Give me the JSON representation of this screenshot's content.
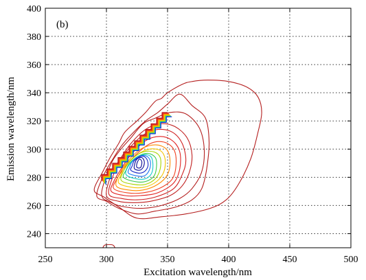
{
  "chart_data": {
    "type": "contour",
    "panel_label": "(b)",
    "xlabel": "Excitation wavelength/nm",
    "ylabel": "Emission wavelength/nm",
    "xlim": [
      250,
      500
    ],
    "ylim": [
      230,
      400
    ],
    "x_ticks": [
      250,
      300,
      350,
      400,
      450,
      500
    ],
    "y_ticks": [
      240,
      260,
      280,
      300,
      320,
      340,
      360,
      380,
      400
    ],
    "x_tick_labels": [
      "250",
      "300",
      "350",
      "400",
      "450",
      "500"
    ],
    "y_tick_labels": [
      "240",
      "260",
      "280",
      "300",
      "320",
      "340",
      "360",
      "380",
      "400"
    ],
    "grid": true,
    "peak": {
      "excitation": 328,
      "emission": 290
    },
    "contours": [
      {
        "color": "#b41e1e",
        "points": [
          [
            290,
            271
          ],
          [
            298,
            266
          ],
          [
            310,
            259
          ],
          [
            325,
            251
          ],
          [
            345,
            252
          ],
          [
            365,
            254
          ],
          [
            385,
            258
          ],
          [
            398,
            264
          ],
          [
            408,
            275
          ],
          [
            418,
            293
          ],
          [
            424,
            312
          ],
          [
            427,
            326
          ],
          [
            424,
            337
          ],
          [
            415,
            344
          ],
          [
            400,
            348
          ],
          [
            383,
            349
          ],
          [
            370,
            348
          ],
          [
            362,
            346
          ],
          [
            350,
            340
          ],
          [
            345,
            336
          ],
          [
            340,
            334
          ],
          [
            332,
            326
          ],
          [
            325,
            320
          ],
          [
            315,
            312
          ],
          [
            310,
            304
          ],
          [
            303,
            294
          ],
          [
            297,
            284
          ]
        ]
      },
      {
        "color": "#b41e1e",
        "points": [
          [
            292,
            267
          ],
          [
            300,
            263
          ],
          [
            310,
            258
          ],
          [
            325,
            254
          ],
          [
            340,
            256
          ],
          [
            357,
            259
          ],
          [
            370,
            264
          ],
          [
            378,
            272
          ],
          [
            382,
            286
          ],
          [
            384,
            305
          ],
          [
            381,
            322
          ],
          [
            370,
            331
          ],
          [
            360,
            339
          ],
          [
            350,
            332
          ],
          [
            342,
            326
          ],
          [
            332,
            320
          ],
          [
            320,
            310
          ],
          [
            312,
            302
          ],
          [
            306,
            294
          ],
          [
            298,
            282
          ]
        ]
      },
      {
        "color": "#b41e1e",
        "points": [
          [
            296,
            268
          ],
          [
            304,
            262
          ],
          [
            315,
            259
          ],
          [
            330,
            258
          ],
          [
            345,
            260
          ],
          [
            360,
            265
          ],
          [
            370,
            272
          ],
          [
            378,
            284
          ],
          [
            380,
            300
          ],
          [
            376,
            315
          ],
          [
            365,
            325
          ],
          [
            352,
            326
          ],
          [
            340,
            322
          ],
          [
            330,
            318
          ],
          [
            320,
            308
          ],
          [
            310,
            298
          ],
          [
            303,
            288
          ]
        ]
      },
      {
        "color": "#c01e1e",
        "points": [
          [
            300,
            267
          ],
          [
            310,
            263
          ],
          [
            322,
            262
          ],
          [
            336,
            263
          ],
          [
            352,
            267
          ],
          [
            362,
            274
          ],
          [
            368,
            284
          ],
          [
            370,
            296
          ],
          [
            366,
            308
          ],
          [
            356,
            316
          ],
          [
            344,
            318
          ],
          [
            332,
            314
          ],
          [
            320,
            304
          ],
          [
            312,
            294
          ],
          [
            304,
            282
          ]
        ]
      },
      {
        "color": "#d02020",
        "points": [
          [
            302,
            268
          ],
          [
            312,
            265
          ],
          [
            325,
            264
          ],
          [
            340,
            266
          ],
          [
            355,
            272
          ],
          [
            362,
            282
          ],
          [
            365,
            292
          ],
          [
            362,
            304
          ],
          [
            354,
            312
          ],
          [
            342,
            314
          ],
          [
            330,
            310
          ],
          [
            318,
            300
          ],
          [
            310,
            290
          ],
          [
            305,
            280
          ]
        ]
      },
      {
        "color": "#e02020",
        "points": [
          [
            304,
            270
          ],
          [
            315,
            267
          ],
          [
            328,
            267
          ],
          [
            342,
            269
          ],
          [
            355,
            276
          ],
          [
            360,
            286
          ],
          [
            360,
            298
          ],
          [
            354,
            306
          ],
          [
            344,
            309
          ],
          [
            332,
            306
          ],
          [
            320,
            296
          ],
          [
            312,
            286
          ],
          [
            306,
            277
          ]
        ]
      },
      {
        "color": "#f04020",
        "points": [
          [
            306,
            272
          ],
          [
            317,
            269
          ],
          [
            330,
            269
          ],
          [
            343,
            272
          ],
          [
            354,
            279
          ],
          [
            357,
            290
          ],
          [
            355,
            300
          ],
          [
            347,
            305
          ],
          [
            336,
            304
          ],
          [
            324,
            296
          ],
          [
            314,
            286
          ],
          [
            308,
            278
          ]
        ]
      },
      {
        "color": "#ff8a00",
        "points": [
          [
            308,
            274
          ],
          [
            318,
            271
          ],
          [
            330,
            271
          ],
          [
            342,
            275
          ],
          [
            350,
            282
          ],
          [
            352,
            292
          ],
          [
            349,
            300
          ],
          [
            340,
            303
          ],
          [
            328,
            300
          ],
          [
            318,
            292
          ],
          [
            311,
            283
          ]
        ]
      },
      {
        "color": "#f4c400",
        "points": [
          [
            310,
            276
          ],
          [
            320,
            273
          ],
          [
            331,
            273
          ],
          [
            341,
            277
          ],
          [
            347,
            284
          ],
          [
            348,
            293
          ],
          [
            344,
            299
          ],
          [
            335,
            300
          ],
          [
            325,
            296
          ],
          [
            316,
            289
          ],
          [
            312,
            282
          ]
        ]
      },
      {
        "color": "#a8d400",
        "points": [
          [
            312,
            278
          ],
          [
            322,
            275
          ],
          [
            332,
            275
          ],
          [
            340,
            279
          ],
          [
            344,
            286
          ],
          [
            344,
            294
          ],
          [
            339,
            298
          ],
          [
            330,
            298
          ],
          [
            321,
            293
          ],
          [
            315,
            286
          ]
        ]
      },
      {
        "color": "#3cc84a",
        "points": [
          [
            314,
            280
          ],
          [
            323,
            277
          ],
          [
            332,
            277
          ],
          [
            339,
            281
          ],
          [
            341,
            288
          ],
          [
            340,
            294
          ],
          [
            334,
            297
          ],
          [
            326,
            295
          ],
          [
            319,
            290
          ],
          [
            316,
            285
          ]
        ]
      },
      {
        "color": "#10c8c8",
        "points": [
          [
            316,
            282
          ],
          [
            324,
            279
          ],
          [
            332,
            279
          ],
          [
            337,
            283
          ],
          [
            338,
            290
          ],
          [
            336,
            295
          ],
          [
            330,
            296
          ],
          [
            323,
            293
          ],
          [
            318,
            288
          ]
        ]
      },
      {
        "color": "#1e78f0",
        "points": [
          [
            318,
            283
          ],
          [
            325,
            281
          ],
          [
            331,
            281
          ],
          [
            335,
            285
          ],
          [
            336,
            291
          ],
          [
            333,
            295
          ],
          [
            327,
            295
          ],
          [
            321,
            291
          ],
          [
            319,
            287
          ]
        ]
      },
      {
        "color": "#1428c8",
        "points": [
          [
            320,
            285
          ],
          [
            326,
            283
          ],
          [
            331,
            284
          ],
          [
            334,
            288
          ],
          [
            333,
            293
          ],
          [
            329,
            295
          ],
          [
            323,
            292
          ],
          [
            321,
            288
          ]
        ]
      },
      {
        "color": "#0a0a96",
        "points": [
          [
            323,
            286
          ],
          [
            327,
            285
          ],
          [
            330,
            287
          ],
          [
            331,
            291
          ],
          [
            329,
            294
          ],
          [
            325,
            293
          ],
          [
            323,
            289
          ]
        ]
      },
      {
        "color": "#0a0a96",
        "points": [
          [
            325,
            287
          ],
          [
            328,
            287
          ],
          [
            329,
            291
          ],
          [
            327,
            293
          ],
          [
            325,
            290
          ]
        ]
      },
      {
        "color": "#b41e1e",
        "points": [
          [
            297,
            230
          ],
          [
            299,
            232
          ],
          [
            305,
            232
          ],
          [
            307,
            230
          ]
        ],
        "closed": false
      }
    ],
    "step_edge_colors": [
      "#b41e1e",
      "#d02020",
      "#f04020",
      "#ff8a00",
      "#f4c400",
      "#a8d400",
      "#10c8c8",
      "#1428c8"
    ]
  }
}
